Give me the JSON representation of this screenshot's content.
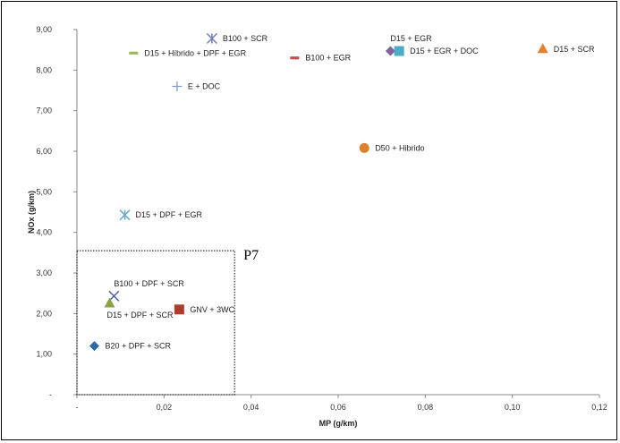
{
  "chart_data": {
    "type": "scatter",
    "xlabel": "MP (g/km)",
    "ylabel": "NOx (g/km)",
    "xlim": [
      0,
      0.12
    ],
    "ylim": [
      0,
      9
    ],
    "x_ticks": [
      "-",
      "0,02",
      "0,04",
      "0,06",
      "0,08",
      "0,10",
      "0,12"
    ],
    "y_ticks": [
      "-",
      "1,00",
      "2,00",
      "3,00",
      "4,00",
      "5,00",
      "6,00",
      "7,00",
      "8,00",
      "9,00"
    ],
    "grid": false,
    "legend": "none",
    "points": [
      {
        "label": "B100 + SCR",
        "x": 0.031,
        "y": 8.78,
        "marker": "x-star",
        "color": "#6f7fb8",
        "label_pos": "right"
      },
      {
        "label": "D15 + Híbrido + DPF + EGR",
        "x": 0.013,
        "y": 8.42,
        "marker": "dash",
        "color": "#9bbb59",
        "label_pos": "right"
      },
      {
        "label": "B100 + EGR",
        "x": 0.05,
        "y": 8.3,
        "marker": "dash",
        "color": "#c0504d",
        "label_pos": "right"
      },
      {
        "label": "D15 + EGR",
        "x": 0.072,
        "y": 8.47,
        "marker": "diamond",
        "color": "#8064a2",
        "label_pos": "above"
      },
      {
        "label": "D15 + EGR + DOC",
        "x": 0.074,
        "y": 8.47,
        "marker": "square",
        "color": "#4bacc6",
        "label_pos": "right"
      },
      {
        "label": "D15 + SCR",
        "x": 0.107,
        "y": 8.52,
        "marker": "triangle",
        "color": "#e4802e",
        "label_pos": "right"
      },
      {
        "label": "E + DOC",
        "x": 0.023,
        "y": 7.6,
        "marker": "plus",
        "color": "#7f9ccf",
        "label_pos": "right"
      },
      {
        "label": "D50 + Hibrido",
        "x": 0.066,
        "y": 6.08,
        "marker": "circle",
        "color": "#d9822b",
        "label_pos": "right"
      },
      {
        "label": "D15 + DPF + EGR",
        "x": 0.011,
        "y": 4.43,
        "marker": "x-star",
        "color": "#6aa9c8",
        "label_pos": "right"
      },
      {
        "label": "B100 + DPF + SCR",
        "x": 0.0085,
        "y": 2.43,
        "marker": "x",
        "color": "#5b5fa6",
        "label_pos": "above"
      },
      {
        "label": "D15 + DPF + SCR",
        "x": 0.0075,
        "y": 2.25,
        "marker": "triangle",
        "color": "#8aa346",
        "label_pos": "below"
      },
      {
        "label": "GNV + 3WC",
        "x": 0.0235,
        "y": 2.1,
        "marker": "square",
        "color": "#b03a2e",
        "label_pos": "right"
      },
      {
        "label": "B20 + DPF + SCR",
        "x": 0.004,
        "y": 1.2,
        "marker": "diamond",
        "color": "#2e6aa6",
        "label_pos": "right"
      }
    ],
    "annotations": [
      {
        "text": "P7",
        "region_x": [
          0,
          0.0362
        ],
        "region_y": [
          0,
          3.55
        ]
      }
    ]
  }
}
